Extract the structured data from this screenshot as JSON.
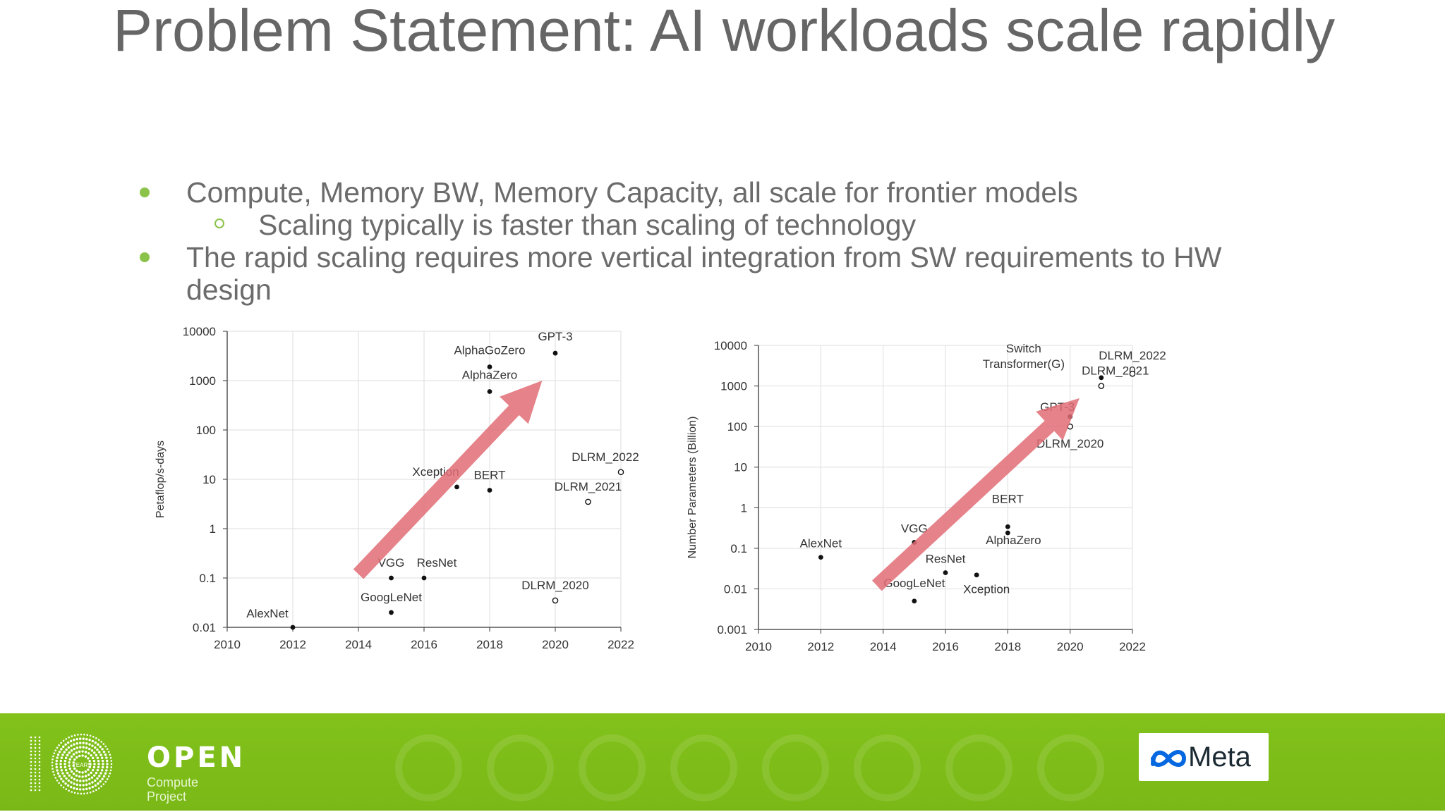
{
  "slide": {
    "title": "Problem Statement: AI workloads scale rapidly",
    "bullets": [
      "Compute, Memory BW, Memory Capacity, all scale for frontier models",
      "Scaling typically is faster than scaling of technology",
      "The rapid scaling requires more vertical integration from SW requirements to HW design"
    ],
    "colors": {
      "bullet": "#8bc34a",
      "arrow": "#e06c75",
      "footer": "#82c21b"
    }
  },
  "chart_data": [
    {
      "type": "scatter",
      "xlabel": "",
      "ylabel": "Petaflop/s-days",
      "yscale": "log",
      "xlim": [
        2010,
        2022
      ],
      "ylim": [
        0.01,
        10000
      ],
      "xticks": [
        "2010",
        "2012",
        "2014",
        "2016",
        "2018",
        "2020",
        "2022"
      ],
      "yticks": [
        "0.01",
        "0.1",
        "1",
        "10",
        "100",
        "1000",
        "10000"
      ],
      "grid": true,
      "points": [
        {
          "label": "AlexNet",
          "x": 2012,
          "y": 0.01
        },
        {
          "label": "VGG",
          "x": 2015,
          "y": 0.1
        },
        {
          "label": "GoogLeNet",
          "x": 2015,
          "y": 0.02
        },
        {
          "label": "ResNet",
          "x": 2016,
          "y": 0.1
        },
        {
          "label": "Xception",
          "x": 2017,
          "y": 7
        },
        {
          "label": "BERT",
          "x": 2018,
          "y": 6
        },
        {
          "label": "AlphaZero",
          "x": 2018,
          "y": 600
        },
        {
          "label": "AlphaGoZero",
          "x": 2018,
          "y": 1900
        },
        {
          "label": "GPT-3",
          "x": 2020,
          "y": 3600
        },
        {
          "label": "DLRM_2020",
          "x": 2020,
          "y": 0.035
        },
        {
          "label": "DLRM_2021",
          "x": 2021,
          "y": 3.5
        },
        {
          "label": "DLRM_2022",
          "x": 2022,
          "y": 14
        }
      ],
      "trend_arrow": {
        "from": [
          2014,
          0.12
        ],
        "to": [
          2019.6,
          1000
        ]
      }
    },
    {
      "type": "scatter",
      "xlabel": "",
      "ylabel": "Number Parameters (Billion)",
      "yscale": "log",
      "xlim": [
        2010,
        2022
      ],
      "ylim": [
        0.001,
        10000
      ],
      "xticks": [
        "2010",
        "2012",
        "2014",
        "2016",
        "2018",
        "2020",
        "2022"
      ],
      "yticks": [
        "0.001",
        "0.01",
        "0.1",
        "1",
        "10",
        "100",
        "1000",
        "10000"
      ],
      "grid": true,
      "points": [
        {
          "label": "AlexNet",
          "x": 2012,
          "y": 0.06
        },
        {
          "label": "VGG",
          "x": 2015,
          "y": 0.14
        },
        {
          "label": "GoogLeNet",
          "x": 2015,
          "y": 0.005
        },
        {
          "label": "ResNet",
          "x": 2016,
          "y": 0.025
        },
        {
          "label": "Xception",
          "x": 2017,
          "y": 0.022
        },
        {
          "label": "BERT",
          "x": 2018,
          "y": 0.34
        },
        {
          "label": "AlphaZero",
          "x": 2018,
          "y": 0.24
        },
        {
          "label": "GPT-3",
          "x": 2020,
          "y": 175
        },
        {
          "label": "DLRM_2020",
          "x": 2020,
          "y": 100
        },
        {
          "label": "DLRM_2021",
          "x": 2021,
          "y": 1000
        },
        {
          "label": "Switch Transformer(G)",
          "x": 2021,
          "y": 1600
        },
        {
          "label": "DLRM_2022",
          "x": 2022,
          "y": 2000
        }
      ],
      "trend_arrow": {
        "from": [
          2013.8,
          0.012
        ],
        "to": [
          2020.3,
          500
        ]
      }
    }
  ],
  "footer": {
    "logo_word": "OPEN",
    "logo_sub1": "Compute",
    "logo_sub2": "Project",
    "logo_badge": "YEARS",
    "partner": "Meta"
  }
}
